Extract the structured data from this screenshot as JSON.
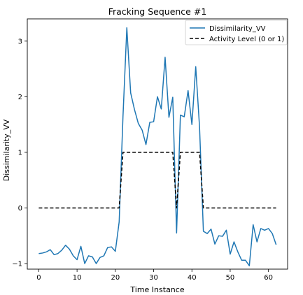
{
  "chart_data": {
    "type": "line",
    "title": "Fracking Sequence #1",
    "xlabel": "Time Instance",
    "ylabel": "Dissimilarity_VV",
    "xlim": [
      -3,
      65
    ],
    "ylim": [
      -1.1,
      3.4
    ],
    "xticks": [
      0,
      10,
      20,
      30,
      40,
      50,
      60
    ],
    "yticks": [
      -1,
      0,
      1,
      2,
      3
    ],
    "ytick_labels": [
      "−1",
      "0",
      "1",
      "2",
      "3"
    ],
    "grid": false,
    "legend_position": "top-right",
    "series": [
      {
        "name": "Dissimilarity_VV",
        "color": "#1f77b4",
        "style": "solid",
        "x": [
          0,
          1,
          2,
          3,
          4,
          5,
          6,
          7,
          8,
          9,
          10,
          11,
          12,
          13,
          14,
          15,
          16,
          17,
          18,
          19,
          20,
          21,
          22,
          23,
          24,
          25,
          26,
          27,
          28,
          29,
          30,
          31,
          32,
          33,
          34,
          35,
          36,
          37,
          38,
          39,
          40,
          41,
          42,
          43,
          44,
          45,
          46,
          47,
          48,
          49,
          50,
          51,
          52,
          53,
          54,
          55,
          56,
          57,
          58,
          59,
          60,
          61,
          62
        ],
        "y": [
          -0.82,
          -0.81,
          -0.79,
          -0.75,
          -0.84,
          -0.82,
          -0.76,
          -0.67,
          -0.74,
          -0.86,
          -0.93,
          -0.69,
          -1.0,
          -0.86,
          -0.88,
          -1.0,
          -0.89,
          -0.86,
          -0.71,
          -0.7,
          -0.78,
          -0.25,
          1.65,
          3.24,
          2.07,
          1.77,
          1.52,
          1.4,
          1.14,
          1.54,
          1.55,
          2.0,
          1.78,
          2.71,
          1.63,
          1.99,
          -0.45,
          1.67,
          1.64,
          2.11,
          1.5,
          2.54,
          1.45,
          -0.42,
          -0.46,
          -0.38,
          -0.65,
          -0.5,
          -0.51,
          -0.4,
          -0.83,
          -0.61,
          -0.79,
          -0.94,
          -0.94,
          -1.04,
          -0.3,
          -0.61,
          -0.37,
          -0.4,
          -0.37,
          -0.46,
          -0.66
        ]
      },
      {
        "name": "Activity Level (0 or 1)",
        "color": "#000000",
        "style": "dashed",
        "x": [
          0,
          1,
          2,
          3,
          4,
          5,
          6,
          7,
          8,
          9,
          10,
          11,
          12,
          13,
          14,
          15,
          16,
          17,
          18,
          19,
          20,
          21,
          22,
          23,
          24,
          25,
          26,
          27,
          28,
          29,
          30,
          31,
          32,
          33,
          34,
          35,
          36,
          37,
          38,
          39,
          40,
          41,
          42,
          43,
          44,
          45,
          46,
          47,
          48,
          49,
          50,
          51,
          52,
          53,
          54,
          55,
          56,
          57,
          58,
          59,
          60,
          61,
          62
        ],
        "y": [
          0,
          0,
          0,
          0,
          0,
          0,
          0,
          0,
          0,
          0,
          0,
          0,
          0,
          0,
          0,
          0,
          0,
          0,
          0,
          0,
          0,
          0,
          1,
          1,
          1,
          1,
          1,
          1,
          1,
          1,
          1,
          1,
          1,
          1,
          1,
          1,
          0,
          1,
          1,
          1,
          1,
          1,
          1,
          0,
          0,
          0,
          0,
          0,
          0,
          0,
          0,
          0,
          0,
          0,
          0,
          0,
          0,
          0,
          0,
          0,
          0,
          0,
          0
        ]
      }
    ]
  }
}
